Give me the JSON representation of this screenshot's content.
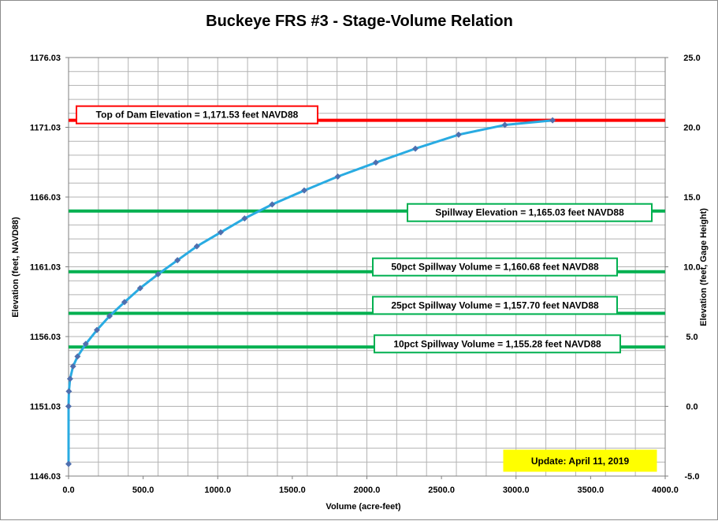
{
  "chart_data": {
    "type": "line",
    "title": "Buckeye FRS #3 - Stage-Volume Relation",
    "xlabel": "Volume (acre-feet)",
    "ylabel": "Elevation  (feet, NAVD88)",
    "y2label": "Elevation  (feet, Gage  Height)",
    "xlim": [
      0,
      4000
    ],
    "ylim": [
      1146.03,
      1176.03
    ],
    "y2lim": [
      -5.0,
      25.0
    ],
    "x_ticks": [
      "0.0",
      "500.0",
      "1000.0",
      "1500.0",
      "2000.0",
      "2500.0",
      "3000.0",
      "3500.0",
      "4000.0"
    ],
    "y_ticks": [
      "1146.03",
      "1151.03",
      "1156.03",
      "1161.03",
      "1166.03",
      "1171.03",
      "1176.03"
    ],
    "y2_ticks": [
      "-5.0",
      "0.0",
      "5.0",
      "10.0",
      "15.0",
      "20.0",
      "25.0"
    ],
    "grid": true,
    "series": [
      {
        "color": "#29abe2",
        "marker_color": "#4f6fae",
        "x": [
          0,
          0,
          2,
          10,
          30,
          60,
          115,
          190,
          275,
          375,
          480,
          600,
          730,
          860,
          1020,
          1180,
          1365,
          1580,
          1805,
          2060,
          2325,
          2615,
          2925,
          3245
        ],
        "y": [
          1146.9,
          1151.03,
          1152.1,
          1153.0,
          1153.9,
          1154.6,
          1155.5,
          1156.5,
          1157.5,
          1158.5,
          1159.5,
          1160.5,
          1161.5,
          1162.5,
          1163.5,
          1164.5,
          1165.5,
          1166.5,
          1167.5,
          1168.5,
          1169.5,
          1170.5,
          1171.2,
          1171.53
        ]
      }
    ],
    "reference_lines": [
      {
        "y": 1171.53,
        "color": "#ff0000",
        "label": "Top of Dam Elevation = 1,171.53  feet NAVD88",
        "box_border": "#ff0000"
      },
      {
        "y": 1165.03,
        "color": "#00b050",
        "label": "Spillway Elevation = 1,165.03  feet NAVD88",
        "box_border": "#00b050"
      },
      {
        "y": 1160.68,
        "color": "#00b050",
        "label": "50pct Spillway Volume = 1,160.68  feet NAVD88",
        "box_border": "#00b050"
      },
      {
        "y": 1157.7,
        "color": "#00b050",
        "label": "25pct Spillway Volume = 1,157.70  feet NAVD88",
        "box_border": "#00b050"
      },
      {
        "y": 1155.28,
        "color": "#00b050",
        "label": "10pct Spillway Volume = 1,155.28  feet NAVD88",
        "box_border": "#00b050"
      }
    ],
    "update_label": "Update: April 11, 2019",
    "update_bg": "#ffff00"
  }
}
